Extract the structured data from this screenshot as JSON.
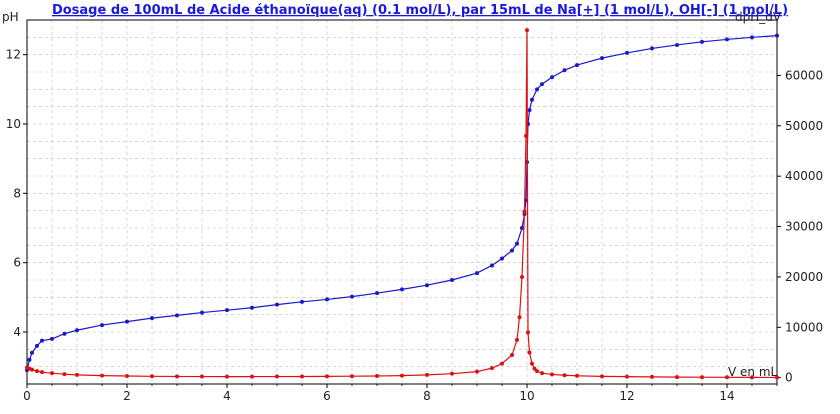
{
  "chart_data": {
    "type": "line",
    "title": "Dosage de 100mL de Acide éthanoïque(aq) (0.1 mol/L),  par 15mL  de Na[+] (1 mol/L), OH[-] (1 mol/L)",
    "xlabel": "V en mL",
    "ylabel": "pH",
    "y2label": "dpH_dV",
    "xlim": [
      0,
      15
    ],
    "ylim": [
      2.5,
      13
    ],
    "y2lim": [
      -1250,
      71000
    ],
    "x_ticks": [
      "0",
      "2",
      "4",
      "6",
      "8",
      "10",
      "12",
      "14"
    ],
    "y_ticks": [
      "4",
      "6",
      "8",
      "10",
      "12"
    ],
    "y2_ticks": [
      "0",
      "10000",
      "20000",
      "30000",
      "40000",
      "50000",
      "60000"
    ],
    "grid": true,
    "colors": {
      "title": "#1a1adf",
      "ph_series": "#1a1acc",
      "derivative_series": "#dd1111",
      "grid": "#bdbdbd",
      "frame": "#000000"
    },
    "series": [
      {
        "axis": "left",
        "x": [
          0,
          0.05,
          0.1,
          0.2,
          0.3,
          0.5,
          0.75,
          1,
          1.5,
          2,
          2.5,
          3,
          3.5,
          4,
          4.5,
          5,
          5.5,
          6,
          6.5,
          7,
          7.5,
          8,
          8.5,
          9,
          9.3,
          9.5,
          9.7,
          9.8,
          9.9,
          9.95,
          9.98,
          10,
          10.02,
          10.05,
          10.1,
          10.2,
          10.3,
          10.5,
          10.75,
          11,
          11.5,
          12,
          12.5,
          13,
          13.5,
          14,
          14.5,
          15
        ],
        "y": [
          2.9,
          3.2,
          3.4,
          3.6,
          3.75,
          3.8,
          3.95,
          4.05,
          4.2,
          4.3,
          4.4,
          4.48,
          4.56,
          4.63,
          4.7,
          4.79,
          4.87,
          4.94,
          5.02,
          5.12,
          5.23,
          5.35,
          5.5,
          5.7,
          5.92,
          6.12,
          6.35,
          6.55,
          7.0,
          7.4,
          7.8,
          8.9,
          10.0,
          10.4,
          10.7,
          11.0,
          11.15,
          11.35,
          11.55,
          11.7,
          11.9,
          12.05,
          12.18,
          12.28,
          12.37,
          12.44,
          12.5,
          12.55
        ]
      },
      {
        "axis": "right",
        "x": [
          0,
          0.05,
          0.1,
          0.2,
          0.3,
          0.5,
          0.75,
          1,
          1.5,
          2,
          2.5,
          3,
          3.5,
          4,
          4.5,
          5,
          5.5,
          6,
          6.5,
          7,
          7.5,
          8,
          8.5,
          9,
          9.3,
          9.5,
          9.7,
          9.8,
          9.85,
          9.9,
          9.95,
          9.98,
          10,
          10.02,
          10.05,
          10.1,
          10.15,
          10.2,
          10.3,
          10.5,
          10.75,
          11,
          11.5,
          12,
          12.5,
          13,
          13.5,
          14,
          14.5,
          15
        ],
        "y": [
          2000,
          1800,
          1600,
          1300,
          1100,
          900,
          700,
          560,
          420,
          340,
          280,
          250,
          230,
          220,
          220,
          230,
          240,
          260,
          300,
          340,
          420,
          560,
          800,
          1200,
          1900,
          2800,
          4500,
          7500,
          12000,
          20000,
          33000,
          48000,
          69000,
          9000,
          5000,
          2800,
          1800,
          1300,
          900,
          650,
          480,
          380,
          270,
          210,
          160,
          120,
          100,
          80,
          60,
          50
        ]
      }
    ]
  }
}
